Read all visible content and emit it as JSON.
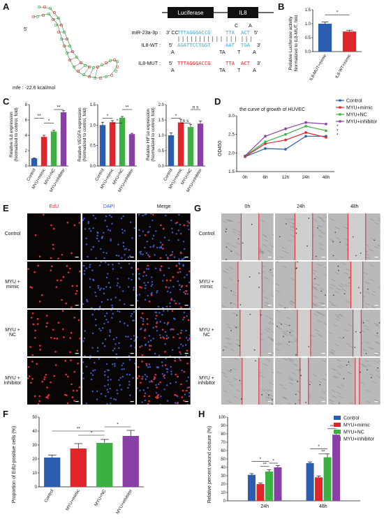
{
  "letters": {
    "a": "A",
    "b": "B",
    "c": "C",
    "d": "D",
    "e": "E",
    "f": "F",
    "g": "G",
    "h": "H"
  },
  "panelA": {
    "five_prime": "5'",
    "mfe": "mfe : -22.6 kcal/mol",
    "luciferase": "Luciferase",
    "il8": "IL8",
    "mir_label": "miR-23a-3p :",
    "mir_3": "3' CC",
    "mir_seq": "TTTAGGGACCG",
    "mir_gap": "TTA",
    "mir_end": "ACT",
    "mir_top_c": "C",
    "mir_top_a": "A",
    "mir_5": "5'",
    "wt_label": "IL8-WT :",
    "wt_5": "5'",
    "wt_seq": "AGATTCCTGGT",
    "wt_gap": "AAT",
    "wt_end": "TGA",
    "wt_3": "3'",
    "wt_below_a": "A",
    "wt_below_ta": "TA",
    "wt_below_t": "T",
    "wt_below_a2": "A",
    "mut_label": "IL8-MUT :",
    "mut_5": "5'",
    "mut_seq": "TTTAGGGACCG",
    "mut_gap": "TTA",
    "mut_end": "ACT",
    "mut_3": "3'",
    "mut_below_a": "A",
    "mut_below_ta": "TA",
    "mut_below_t": "T",
    "mut_below_a2": "A",
    "colors": {
      "mir": "#3fa9d6",
      "mut": "#d62728",
      "hairpin_green": "#3aa63a",
      "hairpin_red": "#d62728"
    }
  },
  "panelB": {
    "ylabel1": "Relative Luciferase activity",
    "ylabel2": "Normalized to IL8-MUT, fold",
    "sig": "*",
    "chart_data": {
      "type": "bar",
      "categories": [
        "IL8-MUT+mimic",
        "IL8-WT+mimic"
      ],
      "values": [
        1.0,
        0.72
      ],
      "errors": [
        0.06,
        0.05
      ],
      "ylim": [
        0,
        1.5
      ],
      "yticks": [
        "0.0",
        "0.5",
        "1.0",
        "1.5"
      ],
      "colors": [
        "#2a5db0",
        "#e0262b"
      ]
    }
  },
  "panelC": {
    "charts": [
      {
        "ylabel1": "Relative IL8 expression",
        "ylabel2": "(Normalized to control, fold)",
        "yticks": [
          "0",
          "2",
          "4",
          "6",
          "8"
        ],
        "ylim": [
          0,
          8
        ],
        "values": [
          1.0,
          3.8,
          4.5,
          7.0
        ],
        "errors": [
          0.05,
          0.2,
          0.15,
          0.2
        ],
        "sig": [
          "**",
          "*",
          "**"
        ]
      },
      {
        "ylabel1": "Relative VEGFA expression",
        "ylabel2": "(Normalized to control, fold)",
        "yticks": [
          "0.0",
          "0.5",
          "1.0",
          "1.5"
        ],
        "ylim": [
          0,
          1.5
        ],
        "values": [
          1.0,
          1.07,
          1.18,
          0.78
        ],
        "errors": [
          0.07,
          0.04,
          0.03,
          0.02
        ],
        "sig": [
          "*",
          "*",
          "**"
        ]
      },
      {
        "ylabel1": "Relative HIF1α expression",
        "ylabel2": "(Normalized to control, fold)",
        "yticks": [
          "0.0",
          "0.5",
          "1.0",
          "1.5",
          "2.0"
        ],
        "ylim": [
          0,
          2
        ],
        "values": [
          1.0,
          1.42,
          1.27,
          1.38
        ],
        "errors": [
          0.08,
          0.1,
          0.09,
          0.09
        ],
        "sig": [
          "*",
          "n s",
          "n s"
        ]
      }
    ],
    "categories": [
      "Control",
      "MYU+mimic",
      "MYU+NC",
      "MYU+inhibitor"
    ],
    "colors": [
      "#2a5db0",
      "#e0262b",
      "#3cb043",
      "#8a3fa7"
    ]
  },
  "panelD": {
    "title": "the curve of growth of HUVEC",
    "ylabel": "OD450",
    "yticks": [
      "1.5",
      "2.0",
      "2.5",
      "3.0"
    ],
    "xticks": [
      "0h",
      "6h",
      "12h",
      "24h",
      "48h"
    ],
    "legend": [
      "Control",
      "MYU+mimic",
      "MYU+NC",
      "MYU+inhibitor"
    ],
    "sig": [
      "*",
      "*",
      "*"
    ],
    "chart_data": {
      "type": "line",
      "x": [
        "0h",
        "6h",
        "12h",
        "24h",
        "48h"
      ],
      "ylim": [
        1.5,
        3.0
      ],
      "series": [
        {
          "name": "Control",
          "values": [
            1.9,
            2.12,
            2.1,
            2.45,
            2.45
          ],
          "color": "#2a5db0"
        },
        {
          "name": "MYU+mimic",
          "values": [
            1.9,
            2.25,
            2.35,
            2.55,
            2.42
          ],
          "color": "#e0262b"
        },
        {
          "name": "MYU+NC",
          "values": [
            1.92,
            2.3,
            2.5,
            2.72,
            2.6
          ],
          "color": "#3cb043"
        },
        {
          "name": "MYU+inhibitor",
          "values": [
            1.92,
            2.45,
            2.65,
            2.82,
            2.78
          ],
          "color": "#8a3fa7"
        }
      ]
    }
  },
  "panelE": {
    "col": [
      "EdU",
      "DAPI",
      "Merge"
    ],
    "rows": [
      "Control",
      "MYU +\nmimic",
      "MYU +\nNC",
      "MYU +\ninhibitor"
    ],
    "col_colors": [
      "#e0262b",
      "#3a5fd0",
      "#111111"
    ]
  },
  "panelG": {
    "col": [
      "0h",
      "24h",
      "48h"
    ],
    "rows": [
      "Control",
      "MYU +\nmimic",
      "MYU +\nNC",
      "MYU +\ninhibitor"
    ]
  },
  "panelF": {
    "ylabel": "Proportion of EdU-positive cells (%)",
    "yticks": [
      "0",
      "10",
      "20",
      "30",
      "40",
      "50"
    ],
    "sig": [
      "**",
      "*",
      "*"
    ],
    "chart_data": {
      "type": "bar",
      "categories": [
        "Control",
        "MYU+mimic",
        "MYU+NC",
        "MYU+inhibitor"
      ],
      "values": [
        21,
        27.5,
        31.5,
        36.5
      ],
      "errors": [
        1.8,
        3.5,
        2.5,
        4.0
      ],
      "ylim": [
        0,
        50
      ]
    }
  },
  "panelH": {
    "ylabel": "Relative percent wound closure (%)",
    "yticks": [
      "0",
      "10",
      "20",
      "30",
      "40",
      "50",
      "60",
      "70",
      "80",
      "90",
      "100"
    ],
    "legend": [
      "Control",
      "MYU+mimic",
      "MYU+NC",
      "MYU+inhibitor"
    ],
    "sig24": [
      "*",
      "**",
      "*"
    ],
    "sig48": [
      "*",
      "**",
      "**"
    ],
    "chart_data": {
      "type": "bar",
      "categories": [
        "24h",
        "48h"
      ],
      "ylim": [
        0,
        100
      ],
      "series": [
        {
          "name": "Control",
          "values": [
            31,
            45
          ],
          "errors": [
            1.5,
            1.5
          ]
        },
        {
          "name": "MYU+mimic",
          "values": [
            20,
            28
          ],
          "errors": [
            1.2,
            1.5
          ]
        },
        {
          "name": "MYU+NC",
          "values": [
            35,
            52
          ],
          "errors": [
            2,
            4
          ]
        },
        {
          "name": "MYU+inhibitor",
          "values": [
            40,
            79
          ],
          "errors": [
            2,
            3
          ]
        }
      ]
    }
  }
}
